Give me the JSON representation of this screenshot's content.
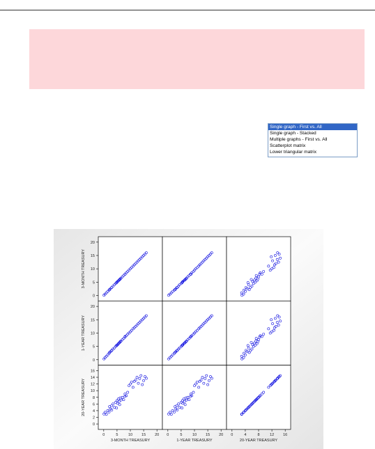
{
  "list_options": [
    "Single graph - First vs. All",
    "Single graph - Stacked",
    "Multiple graphs - First vs. All",
    "Scatterplot matrix",
    "Lower triangular matrix"
  ],
  "selected_option": 0,
  "chart_data": {
    "type": "scatter_matrix",
    "color": "#1010e0",
    "series": [
      {
        "name": "3-MONTH TREASURY",
        "lim": [
          -1,
          21
        ],
        "ticks": [
          0,
          5,
          10,
          15,
          20
        ],
        "values": [
          0.1,
          0.5,
          1.0,
          1.5,
          2.0,
          2.5,
          3.0,
          3.0,
          3.5,
          4.0,
          4.5,
          4.8,
          5.0,
          5.2,
          5.5,
          5.8,
          6.0,
          6.2,
          6.5,
          7.0,
          7.5,
          8.0,
          8.0,
          8.5,
          9.0,
          9.5,
          10.0,
          10.5,
          11.0,
          11.5,
          12.0,
          12.5,
          13.0,
          13.5,
          14.0,
          14.5,
          15.0,
          15.5,
          16.0,
          2.2
        ]
      },
      {
        "name": "1-YEAR TREASURY",
        "lim": [
          -1,
          21
        ],
        "ticks": [
          0,
          5,
          10,
          15,
          20
        ],
        "values": [
          0.3,
          0.8,
          1.3,
          1.8,
          2.4,
          3.0,
          3.4,
          3.5,
          4.0,
          4.4,
          5.0,
          5.3,
          5.5,
          5.6,
          6.0,
          6.3,
          6.5,
          6.8,
          7.0,
          7.5,
          8.0,
          8.5,
          8.7,
          9.0,
          9.6,
          10.0,
          10.5,
          11.0,
          11.6,
          12.0,
          12.5,
          13.0,
          13.5,
          14.0,
          14.5,
          15.0,
          15.5,
          16.0,
          16.5,
          2.7
        ]
      },
      {
        "name": "20-YEAR TREASURY",
        "lim": [
          -0.8,
          16.8
        ],
        "ticks": [
          0,
          2,
          4,
          6,
          8,
          10,
          12,
          14,
          16
        ],
        "xticks": [
          0,
          4,
          8,
          12,
          16
        ],
        "values": [
          3.0,
          3.5,
          2.9,
          4.0,
          3.6,
          4.5,
          5.5,
          4.2,
          6.0,
          5.0,
          6.5,
          4.8,
          7.0,
          6.2,
          7.5,
          6.8,
          5.8,
          7.8,
          7.2,
          8.0,
          7.3,
          8.3,
          9.0,
          8.5,
          9.5,
          11.5,
          12.0,
          12.6,
          11.0,
          12.8,
          13.2,
          14.0,
          12.2,
          13.6,
          14.5,
          11.8,
          13.0,
          14.2,
          13.7,
          5.2
        ]
      }
    ]
  }
}
